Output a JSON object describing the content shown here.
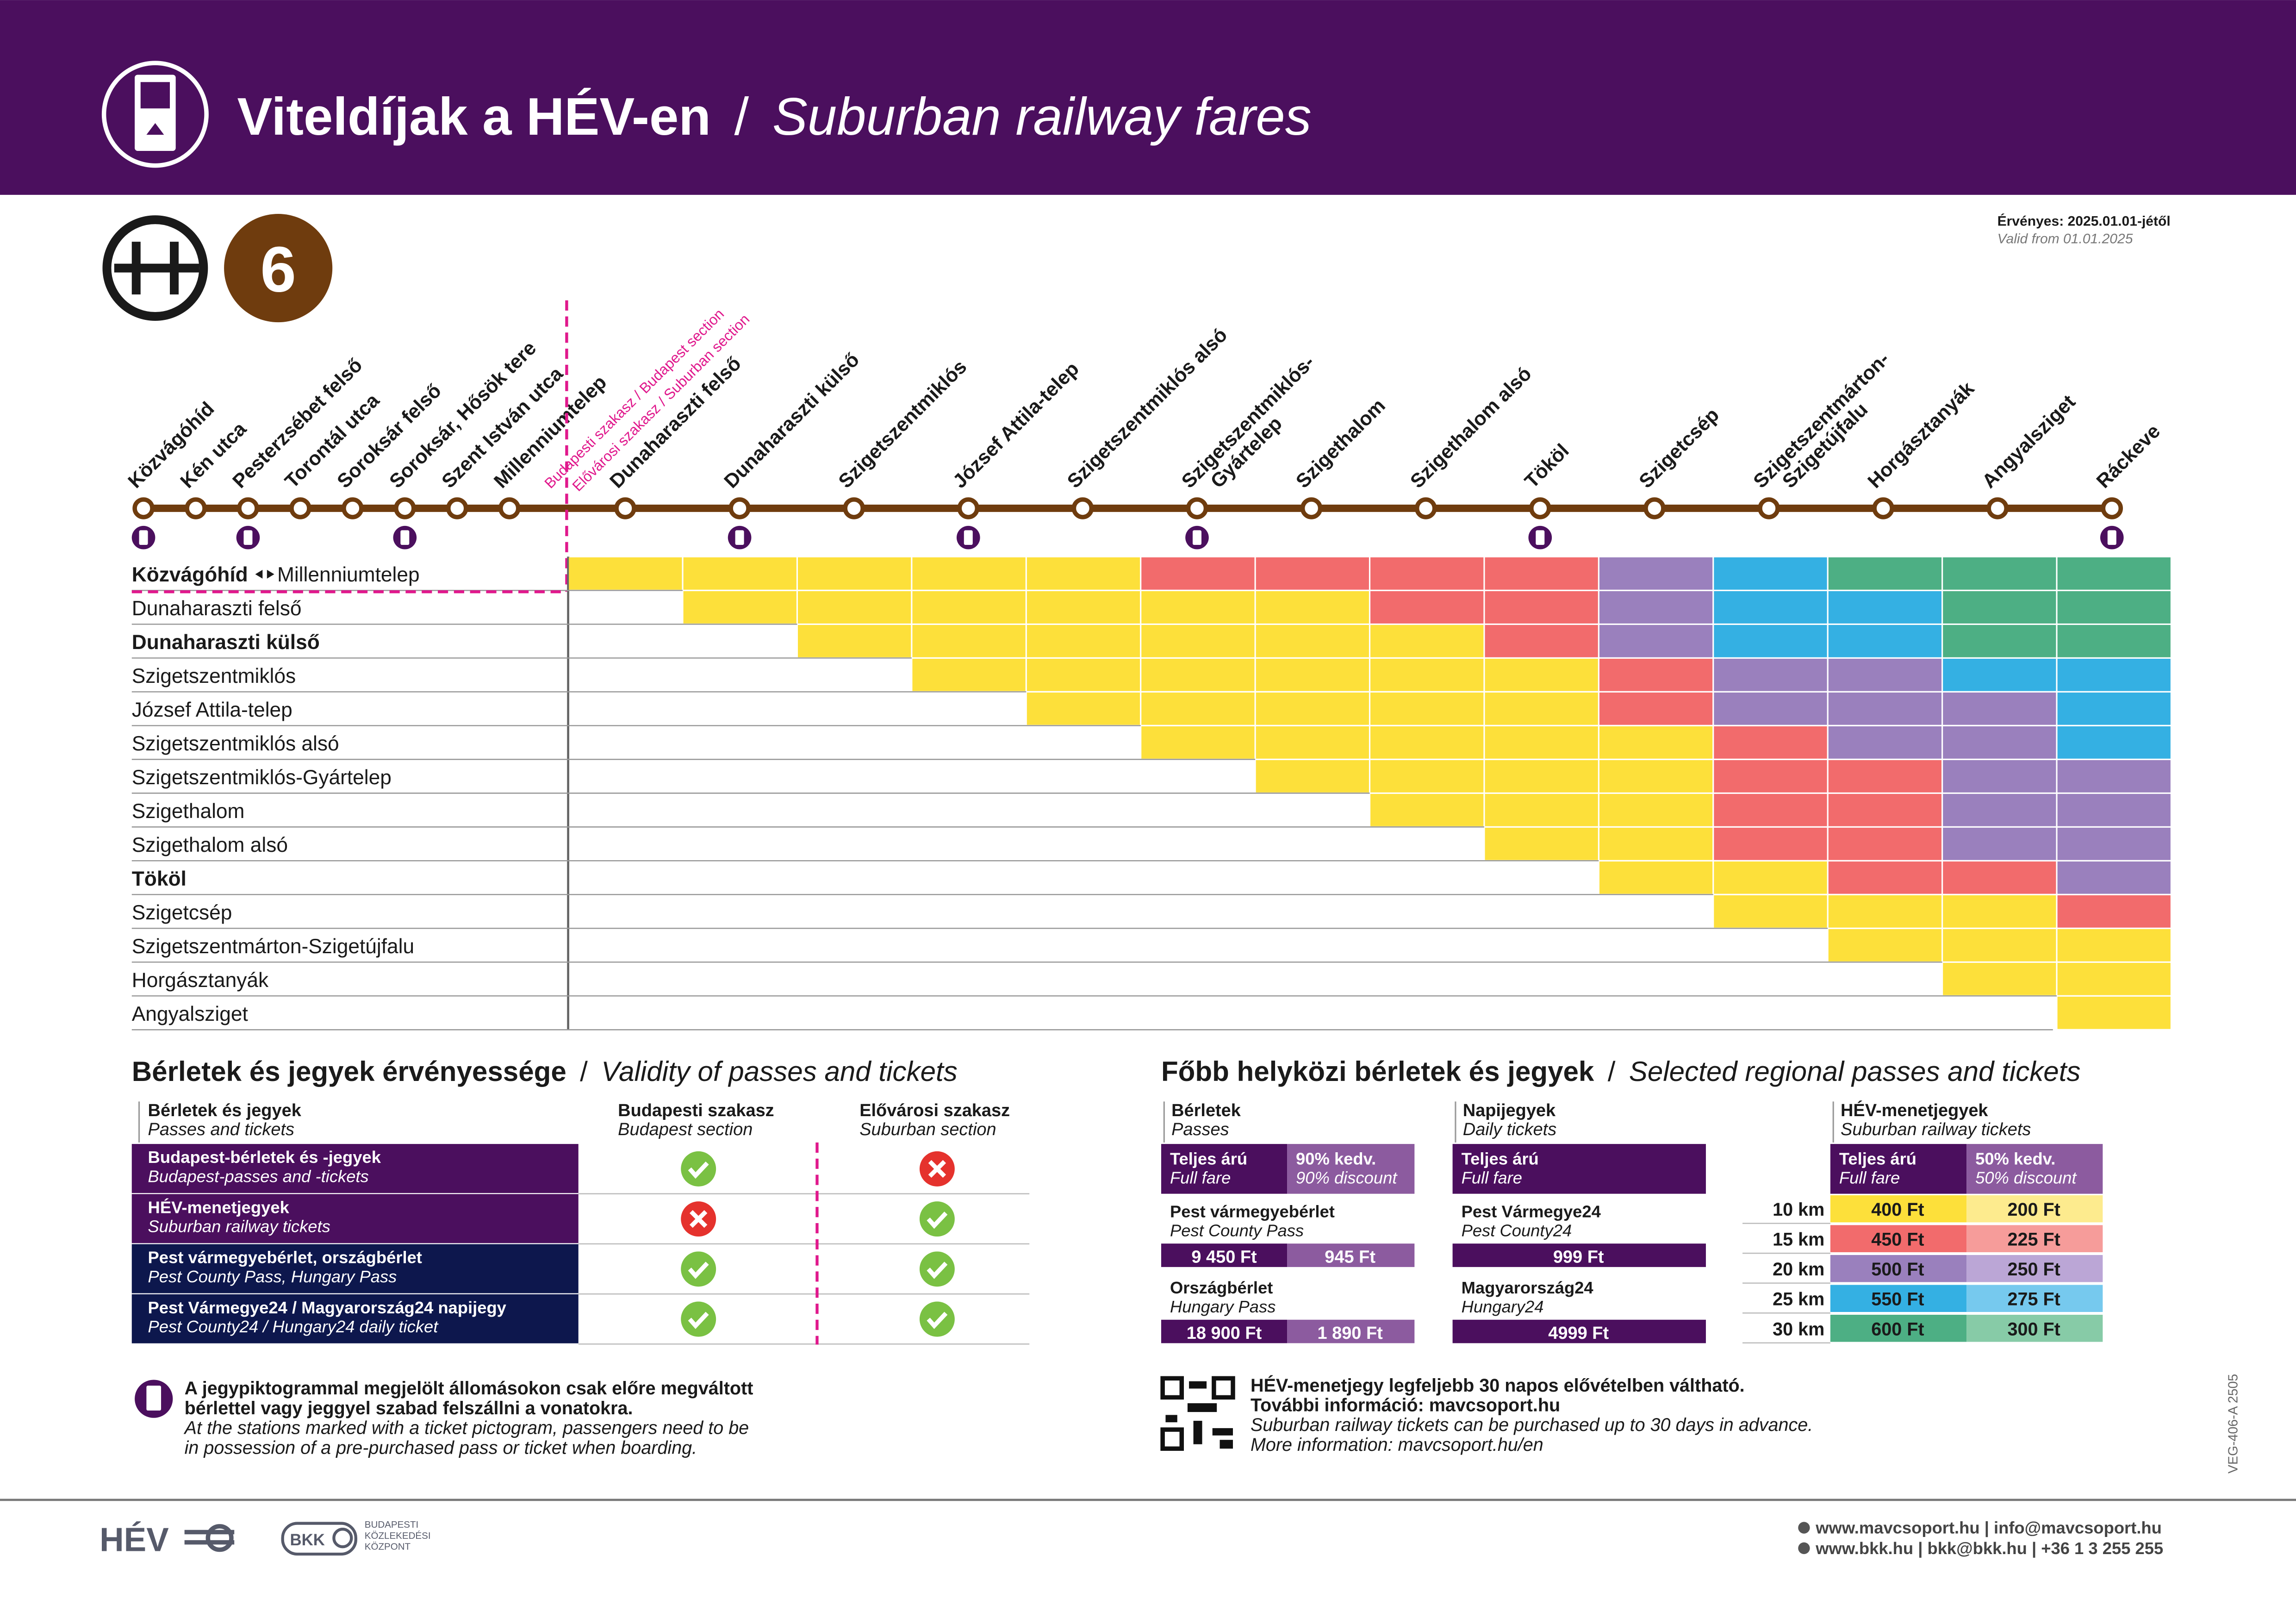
{
  "header": {
    "title": "Viteldíjak a HÉV-en",
    "separator": "/",
    "subtitle": "Suburban railway fares"
  },
  "line": {
    "symbol": "6",
    "valid_hu": "Érvényes: 2025.01.01-jétől",
    "valid_en": "Valid from 01.01.2025",
    "section_budapest": "Budapesti szakasz / Budapest section",
    "section_suburban": "Elővárosi szakasz / Suburban section",
    "stations": [
      {
        "name": "Közvágóhíd",
        "ticket": true
      },
      {
        "name": "Kén utca",
        "ticket": false
      },
      {
        "name": "Pesterzsébet felső",
        "ticket": true
      },
      {
        "name": "Torontál utca",
        "ticket": false
      },
      {
        "name": "Soroksár felső",
        "ticket": false
      },
      {
        "name": "Soroksár, Hősök tere",
        "ticket": true
      },
      {
        "name": "Szent István utca",
        "ticket": false
      },
      {
        "name": "Millenniumtelep",
        "ticket": false
      },
      {
        "name": "Dunaharaszti felső",
        "ticket": false
      },
      {
        "name": "Dunaharaszti külső",
        "ticket": true
      },
      {
        "name": "Szigetszentmiklós",
        "ticket": false
      },
      {
        "name": "József Attila-telep",
        "ticket": true
      },
      {
        "name": "Szigetszentmiklós alsó",
        "ticket": false
      },
      {
        "name": [
          "Szigetszentmiklós-",
          "Gyártelep"
        ],
        "ticket": true
      },
      {
        "name": "Szigethalom",
        "ticket": false
      },
      {
        "name": "Szigethalom alsó",
        "ticket": false
      },
      {
        "name": "Tököl",
        "ticket": true
      },
      {
        "name": "Szigetcsép",
        "ticket": false
      },
      {
        "name": [
          "Szigetszentmárton-",
          "Szigetújfalu"
        ],
        "ticket": false
      },
      {
        "name": "Horgásztanyák",
        "ticket": false
      },
      {
        "name": "Angyalsziget",
        "ticket": false
      },
      {
        "name": "Ráckeve",
        "ticket": true
      }
    ]
  },
  "fare_matrix": {
    "rows": [
      {
        "label": "Közvágóhíd",
        "label_to": "Millenniumtelep",
        "bold": true,
        "cells": [
          "#fde03a",
          "#fde03a",
          "#fde03a",
          "#fde03a",
          "#fde03a",
          "#f26b6c",
          "#f26b6c",
          "#f26b6c",
          "#f26b6c",
          "#9a80bd",
          "#34b0e3",
          "#4daf84",
          "#4daf84",
          "#4daf84"
        ]
      },
      {
        "label": "Dunaharaszti felső",
        "bold": false,
        "cells": [
          "#fde03a",
          "#fde03a",
          "#fde03a",
          "#fde03a",
          "#fde03a",
          "#fde03a",
          "#f26b6c",
          "#f26b6c",
          "#9a80bd",
          "#34b0e3",
          "#34b0e3",
          "#4daf84",
          "#4daf84"
        ]
      },
      {
        "label": "Dunaharaszti külső",
        "bold": true,
        "cells": [
          "#fde03a",
          "#fde03a",
          "#fde03a",
          "#fde03a",
          "#fde03a",
          "#fde03a",
          "#f26b6c",
          "#9a80bd",
          "#34b0e3",
          "#34b0e3",
          "#4daf84",
          "#4daf84"
        ]
      },
      {
        "label": "Szigetszentmiklós",
        "bold": false,
        "cells": [
          "#fde03a",
          "#fde03a",
          "#fde03a",
          "#fde03a",
          "#fde03a",
          "#fde03a",
          "#f26b6c",
          "#9a80bd",
          "#9a80bd",
          "#34b0e3",
          "#34b0e3"
        ]
      },
      {
        "label": "József Attila-telep",
        "bold": false,
        "cells": [
          "#fde03a",
          "#fde03a",
          "#fde03a",
          "#fde03a",
          "#fde03a",
          "#f26b6c",
          "#9a80bd",
          "#9a80bd",
          "#9a80bd",
          "#34b0e3"
        ]
      },
      {
        "label": "Szigetszentmiklós alsó",
        "bold": false,
        "cells": [
          "#fde03a",
          "#fde03a",
          "#fde03a",
          "#fde03a",
          "#fde03a",
          "#f26b6c",
          "#9a80bd",
          "#9a80bd",
          "#34b0e3"
        ]
      },
      {
        "label": "Szigetszentmiklós-Gyártelep",
        "bold": false,
        "cells": [
          "#fde03a",
          "#fde03a",
          "#fde03a",
          "#fde03a",
          "#f26b6c",
          "#f26b6c",
          "#9a80bd",
          "#9a80bd"
        ]
      },
      {
        "label": "Szigethalom",
        "bold": false,
        "cells": [
          "#fde03a",
          "#fde03a",
          "#fde03a",
          "#f26b6c",
          "#f26b6c",
          "#9a80bd",
          "#9a80bd"
        ]
      },
      {
        "label": "Szigethalom alsó",
        "bold": false,
        "cells": [
          "#fde03a",
          "#fde03a",
          "#f26b6c",
          "#f26b6c",
          "#9a80bd",
          "#9a80bd"
        ]
      },
      {
        "label": "Tököl",
        "bold": true,
        "cells": [
          "#fde03a",
          "#fde03a",
          "#f26b6c",
          "#f26b6c",
          "#9a80bd"
        ]
      },
      {
        "label": "Szigetcsép",
        "bold": false,
        "cells": [
          "#fde03a",
          "#fde03a",
          "#fde03a",
          "#f26b6c"
        ]
      },
      {
        "label": "Szigetszentmárton-Szigetújfalu",
        "bold": false,
        "cells": [
          "#fde03a",
          "#fde03a",
          "#fde03a"
        ]
      },
      {
        "label": "Horgásztanyák",
        "bold": false,
        "cells": [
          "#fde03a",
          "#fde03a"
        ]
      },
      {
        "label": "Angyalsziget",
        "bold": false,
        "cells": [
          "#fde03a"
        ]
      }
    ]
  },
  "validity": {
    "title": "Bérletek és jegyek érvényessége",
    "title_en": "Validity of passes and tickets",
    "head": {
      "name": "Bérletek és jegyek",
      "name_en": "Passes and tickets",
      "budapest": "Budapesti szakasz",
      "budapest_en": "Budapest section",
      "suburban": "Elővárosi szakasz",
      "suburban_en": "Suburban section"
    },
    "rows": [
      {
        "name": "Budapest-bérletek és -jegyek",
        "name_en": "Budapest-passes and -tickets",
        "budapest": true,
        "suburban": false,
        "color": "#4b0f5e"
      },
      {
        "name": "HÉV-menetjegyek",
        "name_en": "Suburban railway tickets",
        "budapest": false,
        "suburban": true,
        "color": "#4b0f5e"
      },
      {
        "name": "Pest vármegyebérlet, országbérlet",
        "name_en": "Pest County Pass, Hungary Pass",
        "budapest": true,
        "suburban": true,
        "color": "#0d174d"
      },
      {
        "name": "Pest Vármegye24 / Magyarország24 napijegy",
        "name_en": "Pest County24 / Hungary24 daily ticket",
        "budapest": true,
        "suburban": true,
        "color": "#0d174d"
      }
    ]
  },
  "note": {
    "lines": [
      "A jegypiktogrammal megjelölt állomásokon csak előre megváltott",
      "bérlettel vagy jeggyel szabad felszállni a vonatokra."
    ],
    "lines_en": [
      "At the stations marked with a ticket pictogram, passengers need to be",
      "in possession of a pre-purchased pass or ticket when boarding."
    ]
  },
  "regional": {
    "title": "Főbb helyközi bérletek és jegyek",
    "title_en": "Selected regional passes and tickets",
    "passes": {
      "name": "Bérletek",
      "name_en": "Passes",
      "full": "Teljes árú",
      "full_en": "Full fare",
      "discount": "90% kedv.",
      "discount_en": "90% discount",
      "items": [
        {
          "name": "Pest vármegyebérlet",
          "name_en": "Pest County Pass",
          "full": "9 450 Ft",
          "discount": "945 Ft"
        },
        {
          "name": "Országbérlet",
          "name_en": "Hungary Pass",
          "full": "18 900 Ft",
          "discount": "1 890 Ft"
        }
      ]
    },
    "daily": {
      "name": "Napijegyek",
      "name_en": "Daily tickets",
      "full": "Teljes árú",
      "full_en": "Full fare",
      "items": [
        {
          "name": "Pest Vármegye24",
          "name_en": "Pest County24",
          "full": "999 Ft"
        },
        {
          "name": "Magyarország24",
          "name_en": "Hungary24",
          "full": "4999 Ft"
        }
      ]
    },
    "hev": {
      "name": "HÉV-menetjegyek",
      "name_en": "Suburban railway tickets",
      "full": "Teljes árú",
      "full_en": "Full fare",
      "discount": "50% kedv.",
      "discount_en": "50% discount",
      "rows": [
        {
          "km": "10 km",
          "full": "400 Ft",
          "discount": "200 Ft",
          "color": "#fde03a",
          "light": "#fdeb8e"
        },
        {
          "km": "15 km",
          "full": "450 Ft",
          "discount": "225 Ft",
          "color": "#f26b6c",
          "light": "#f69c9a"
        },
        {
          "km": "20 km",
          "full": "500 Ft",
          "discount": "250 Ft",
          "color": "#9a80bd",
          "light": "#bba6d6"
        },
        {
          "km": "25 km",
          "full": "550 Ft",
          "discount": "275 Ft",
          "color": "#34b0e3",
          "light": "#76c9ee"
        },
        {
          "km": "30 km",
          "full": "600 Ft",
          "discount": "300 Ft",
          "color": "#4daf84",
          "light": "#87cba7"
        }
      ]
    },
    "note": [
      "HÉV-menetjegy legfeljebb 30 napos elővételben váltható.",
      "További információ: mavcsoport.hu"
    ],
    "note_en": [
      "Suburban railway tickets can be purchased up to 30 days in advance.",
      "More information: mavcsoport.hu/en"
    ]
  },
  "footer": {
    "hev_logo": "HÉV",
    "bkk_logo": "BKK",
    "bkk_name": [
      "BUDAPESTI",
      "KÖZLEKEDÉSI",
      "KÖZPONT"
    ],
    "contacts": [
      "www.mavcsoport.hu | info@mavcsoport.hu",
      "www.bkk.hu | bkk@bkk.hu | +36 1 3 255 255"
    ],
    "code": "VEG-406-A 2505"
  }
}
